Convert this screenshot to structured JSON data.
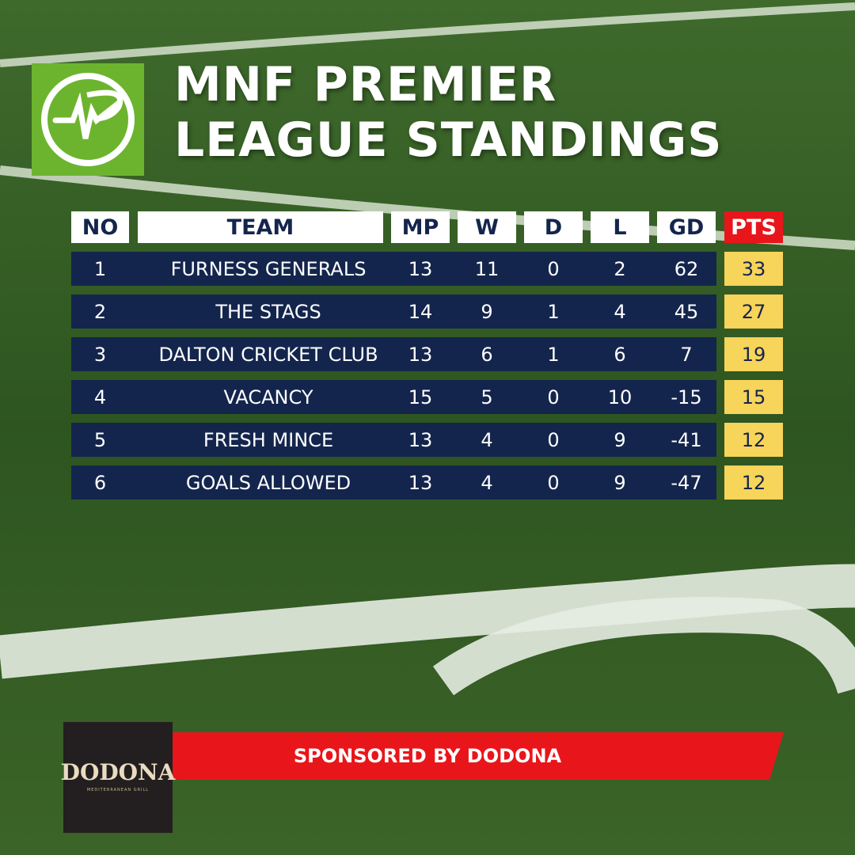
{
  "header": {
    "title_lines": [
      "MNF PREMIER",
      "LEAGUE STANDINGS"
    ]
  },
  "table": {
    "header": [
      "NO",
      "TEAM",
      "MP",
      "W",
      "D",
      "L",
      "GD",
      "PTS"
    ],
    "rows": [
      [
        1,
        "FURNESS GENERALS",
        13,
        11,
        0,
        2,
        62,
        33
      ],
      [
        2,
        "THE STAGS",
        14,
        9,
        1,
        4,
        45,
        27
      ],
      [
        3,
        "DALTON CRICKET CLUB",
        13,
        6,
        1,
        6,
        7,
        19
      ],
      [
        4,
        "VACANCY",
        15,
        5,
        0,
        10,
        -15,
        15
      ],
      [
        5,
        "FRESH MINCE",
        13,
        4,
        0,
        9,
        -41,
        12
      ],
      [
        6,
        "GOALS ALLOWED",
        13,
        4,
        0,
        9,
        -47,
        12
      ]
    ]
  },
  "sponsor": {
    "text": "SPONSORED BY DODONA",
    "logo_name": "DODONA",
    "logo_tagline": "MEDITERRANEAN GRILL"
  }
}
